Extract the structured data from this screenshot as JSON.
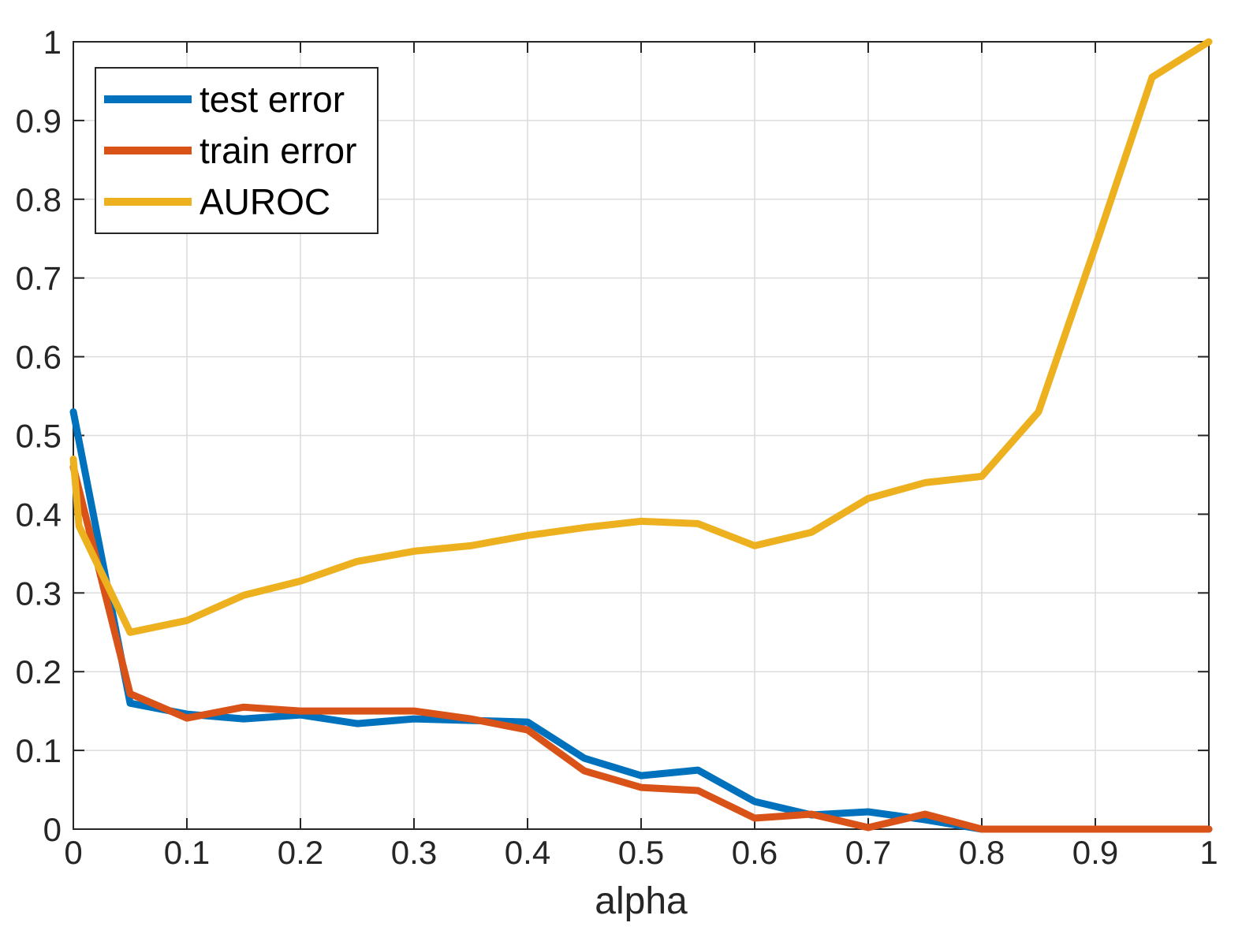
{
  "figure": {
    "background": "#ffffff"
  },
  "legend": {
    "position": "top-left",
    "entries": [
      {
        "label": "test error",
        "color": "#0072BD"
      },
      {
        "label": "train error",
        "color": "#D95319"
      },
      {
        "label": "AUROC",
        "color": "#EDB120"
      }
    ]
  },
  "chart_data": {
    "type": "line",
    "title": "",
    "xlabel": "alpha",
    "ylabel": "",
    "xlim": [
      0,
      1
    ],
    "ylim": [
      0,
      1
    ],
    "grid": true,
    "legend_position": "top-left",
    "axis_color": "#262626",
    "grid_color": "#dcdcdc",
    "text_color": "#262626",
    "x_ticks": [
      0,
      0.1,
      0.2,
      0.3,
      0.4,
      0.5,
      0.6,
      0.7,
      0.8,
      0.9,
      1
    ],
    "x_tick_labels": [
      "0",
      "0.1",
      "0.2",
      "0.3",
      "0.4",
      "0.5",
      "0.6",
      "0.7",
      "0.8",
      "0.9",
      "1"
    ],
    "y_ticks": [
      0,
      0.1,
      0.2,
      0.3,
      0.4,
      0.5,
      0.6,
      0.7,
      0.8,
      0.9,
      1
    ],
    "y_tick_labels": [
      "0",
      "0.1",
      "0.2",
      "0.3",
      "0.4",
      "0.5",
      "0.6",
      "0.7",
      "0.8",
      "0.9",
      "1"
    ],
    "series": [
      {
        "name": "test error",
        "color": "#0072BD",
        "points": [
          [
            0,
            0.53
          ],
          [
            0.05,
            0.16
          ],
          [
            0.1,
            0.146
          ],
          [
            0.15,
            0.14
          ],
          [
            0.2,
            0.145
          ],
          [
            0.25,
            0.134
          ],
          [
            0.3,
            0.14
          ],
          [
            0.35,
            0.138
          ],
          [
            0.4,
            0.136
          ],
          [
            0.45,
            0.09
          ],
          [
            0.5,
            0.068
          ],
          [
            0.55,
            0.075
          ],
          [
            0.6,
            0.035
          ],
          [
            0.65,
            0.018
          ],
          [
            0.7,
            0.022
          ],
          [
            0.75,
            0.012
          ],
          [
            0.8,
            0
          ],
          [
            0.85,
            0
          ],
          [
            0.9,
            0
          ],
          [
            0.95,
            0
          ],
          [
            1,
            0
          ]
        ]
      },
      {
        "name": "train error",
        "color": "#D95319",
        "points": [
          [
            0,
            0.46
          ],
          [
            0.05,
            0.172
          ],
          [
            0.1,
            0.141
          ],
          [
            0.15,
            0.155
          ],
          [
            0.2,
            0.15
          ],
          [
            0.25,
            0.15
          ],
          [
            0.3,
            0.15
          ],
          [
            0.35,
            0.14
          ],
          [
            0.4,
            0.126
          ],
          [
            0.45,
            0.074
          ],
          [
            0.5,
            0.053
          ],
          [
            0.55,
            0.049
          ],
          [
            0.6,
            0.014
          ],
          [
            0.65,
            0.019
          ],
          [
            0.7,
            0.002
          ],
          [
            0.75,
            0.019
          ],
          [
            0.8,
            0
          ],
          [
            0.85,
            0
          ],
          [
            0.9,
            0
          ],
          [
            0.95,
            0
          ],
          [
            1,
            0
          ]
        ]
      },
      {
        "name": "AUROC",
        "color": "#EDB120",
        "points": [
          [
            0,
            0.47
          ],
          [
            0.005,
            0.385
          ],
          [
            0.05,
            0.25
          ],
          [
            0.1,
            0.265
          ],
          [
            0.15,
            0.297
          ],
          [
            0.2,
            0.315
          ],
          [
            0.25,
            0.34
          ],
          [
            0.3,
            0.353
          ],
          [
            0.35,
            0.36
          ],
          [
            0.4,
            0.373
          ],
          [
            0.45,
            0.383
          ],
          [
            0.5,
            0.391
          ],
          [
            0.55,
            0.388
          ],
          [
            0.6,
            0.36
          ],
          [
            0.65,
            0.377
          ],
          [
            0.7,
            0.42
          ],
          [
            0.75,
            0.44
          ],
          [
            0.8,
            0.448
          ],
          [
            0.85,
            0.53
          ],
          [
            0.9,
            0.74
          ],
          [
            0.95,
            0.955
          ],
          [
            1,
            1
          ]
        ]
      }
    ]
  }
}
